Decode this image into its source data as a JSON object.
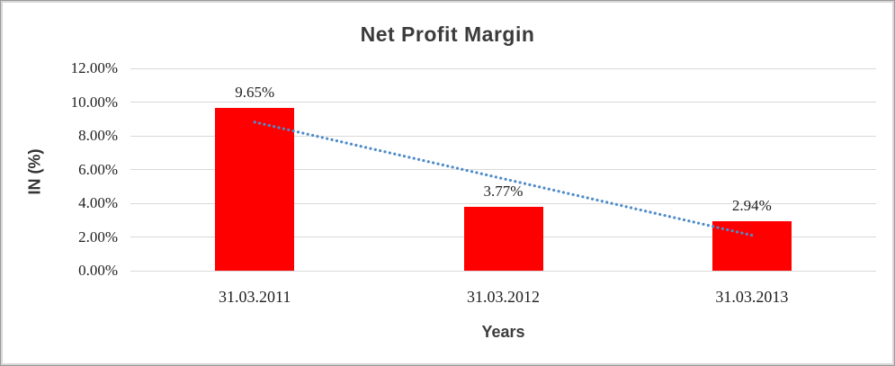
{
  "chart_data": {
    "type": "bar",
    "title": "Net Profit Margin",
    "xlabel": "Years",
    "ylabel": "IN (%)",
    "categories": [
      "31.03.2011",
      "31.03.2012",
      "31.03.2013"
    ],
    "values": [
      9.65,
      3.77,
      2.94
    ],
    "data_labels": [
      "9.65%",
      "3.77%",
      "2.94%"
    ],
    "ylim": [
      0,
      12
    ],
    "y_ticks": [
      {
        "value": 0,
        "label": "0.00%"
      },
      {
        "value": 2,
        "label": "2.00%"
      },
      {
        "value": 4,
        "label": "4.00%"
      },
      {
        "value": 6,
        "label": "6.00%"
      },
      {
        "value": 8,
        "label": "8.00%"
      },
      {
        "value": 10,
        "label": "10.00%"
      },
      {
        "value": 12,
        "label": "12.00%"
      }
    ],
    "grid": true,
    "legend": "none",
    "bar_color": "#ff0000",
    "trendline": {
      "type": "linear",
      "style": "dotted",
      "color": "#4f8bc9",
      "start_value": 8.81,
      "end_value": 2.1
    }
  },
  "colors": {
    "gridline": "#d9d9d9",
    "label_text": "#1f1f1f",
    "title_text": "#3b3b3b"
  }
}
